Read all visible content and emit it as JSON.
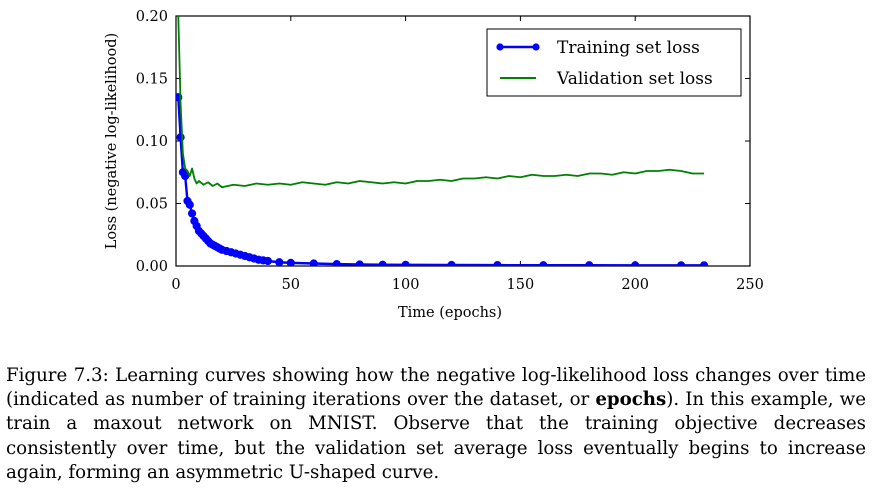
{
  "chart_data": {
    "type": "line",
    "title": "",
    "xlabel": "Time (epochs)",
    "ylabel": "Loss (negative log-likelihood)",
    "xlim": [
      0,
      250
    ],
    "ylim": [
      0,
      0.2
    ],
    "xticks": [
      0,
      50,
      100,
      150,
      200,
      250
    ],
    "xtick_labels": [
      "0",
      "50",
      "100",
      "150",
      "200",
      "250"
    ],
    "yticks": [
      0,
      0.05,
      0.1,
      0.15,
      0.2
    ],
    "ytick_labels": [
      "0.00",
      "0.05",
      "0.10",
      "0.15",
      "0.20"
    ],
    "grid": false,
    "legend_position": "top-right",
    "series": [
      {
        "name": "Training set loss",
        "color": "#0000ff",
        "marker": "circle",
        "points": [
          [
            1,
            0.135
          ],
          [
            2,
            0.103
          ],
          [
            3,
            0.075
          ],
          [
            4,
            0.072
          ],
          [
            5,
            0.052
          ],
          [
            6,
            0.049
          ],
          [
            7,
            0.042
          ],
          [
            8,
            0.036
          ],
          [
            9,
            0.032
          ],
          [
            10,
            0.028
          ],
          [
            11,
            0.026
          ],
          [
            12,
            0.024
          ],
          [
            13,
            0.022
          ],
          [
            14,
            0.02
          ],
          [
            15,
            0.018
          ],
          [
            16,
            0.017
          ],
          [
            17,
            0.016
          ],
          [
            18,
            0.015
          ],
          [
            19,
            0.014
          ],
          [
            20,
            0.013
          ],
          [
            22,
            0.012
          ],
          [
            24,
            0.011
          ],
          [
            26,
            0.01
          ],
          [
            28,
            0.009
          ],
          [
            30,
            0.008
          ],
          [
            32,
            0.007
          ],
          [
            34,
            0.006
          ],
          [
            36,
            0.005
          ],
          [
            38,
            0.0045
          ],
          [
            40,
            0.004
          ],
          [
            45,
            0.003
          ],
          [
            50,
            0.0025
          ],
          [
            60,
            0.002
          ],
          [
            70,
            0.0015
          ],
          [
            80,
            0.0012
          ],
          [
            90,
            0.001
          ],
          [
            100,
            0.0009
          ],
          [
            120,
            0.0008
          ],
          [
            140,
            0.0007
          ],
          [
            160,
            0.0006
          ],
          [
            180,
            0.0006
          ],
          [
            200,
            0.0005
          ],
          [
            220,
            0.0005
          ],
          [
            230,
            0.0005
          ]
        ]
      },
      {
        "name": "Validation set loss",
        "color": "#008000",
        "marker": "none",
        "points": [
          [
            1,
            0.2
          ],
          [
            2,
            0.13
          ],
          [
            3,
            0.09
          ],
          [
            4,
            0.078
          ],
          [
            5,
            0.076
          ],
          [
            6,
            0.072
          ],
          [
            7,
            0.078
          ],
          [
            8,
            0.07
          ],
          [
            9,
            0.066
          ],
          [
            10,
            0.068
          ],
          [
            12,
            0.065
          ],
          [
            14,
            0.067
          ],
          [
            16,
            0.064
          ],
          [
            18,
            0.066
          ],
          [
            20,
            0.063
          ],
          [
            25,
            0.065
          ],
          [
            30,
            0.064
          ],
          [
            35,
            0.066
          ],
          [
            40,
            0.065
          ],
          [
            45,
            0.066
          ],
          [
            50,
            0.065
          ],
          [
            55,
            0.067
          ],
          [
            60,
            0.066
          ],
          [
            65,
            0.065
          ],
          [
            70,
            0.067
          ],
          [
            75,
            0.066
          ],
          [
            80,
            0.068
          ],
          [
            85,
            0.067
          ],
          [
            90,
            0.066
          ],
          [
            95,
            0.067
          ],
          [
            100,
            0.066
          ],
          [
            105,
            0.068
          ],
          [
            110,
            0.068
          ],
          [
            115,
            0.069
          ],
          [
            120,
            0.068
          ],
          [
            125,
            0.07
          ],
          [
            130,
            0.07
          ],
          [
            135,
            0.071
          ],
          [
            140,
            0.07
          ],
          [
            145,
            0.072
          ],
          [
            150,
            0.071
          ],
          [
            155,
            0.073
          ],
          [
            160,
            0.072
          ],
          [
            165,
            0.072
          ],
          [
            170,
            0.073
          ],
          [
            175,
            0.072
          ],
          [
            180,
            0.074
          ],
          [
            185,
            0.074
          ],
          [
            190,
            0.073
          ],
          [
            195,
            0.075
          ],
          [
            200,
            0.074
          ],
          [
            205,
            0.076
          ],
          [
            210,
            0.076
          ],
          [
            215,
            0.077
          ],
          [
            220,
            0.076
          ],
          [
            225,
            0.074
          ],
          [
            230,
            0.074
          ]
        ]
      }
    ]
  },
  "caption": {
    "prefix": "Figure 7.3:  Learning curves showing how the negative log-likelihood loss changes over time (indicated as number of training iterations over the dataset, or ",
    "emphasis": "epochs",
    "suffix": ").  In this example, we train a maxout network on MNIST. Observe that the training objective decreases consistently over time, but the validation set average loss eventually begins to increase again, forming an asymmetric U-shaped curve."
  }
}
